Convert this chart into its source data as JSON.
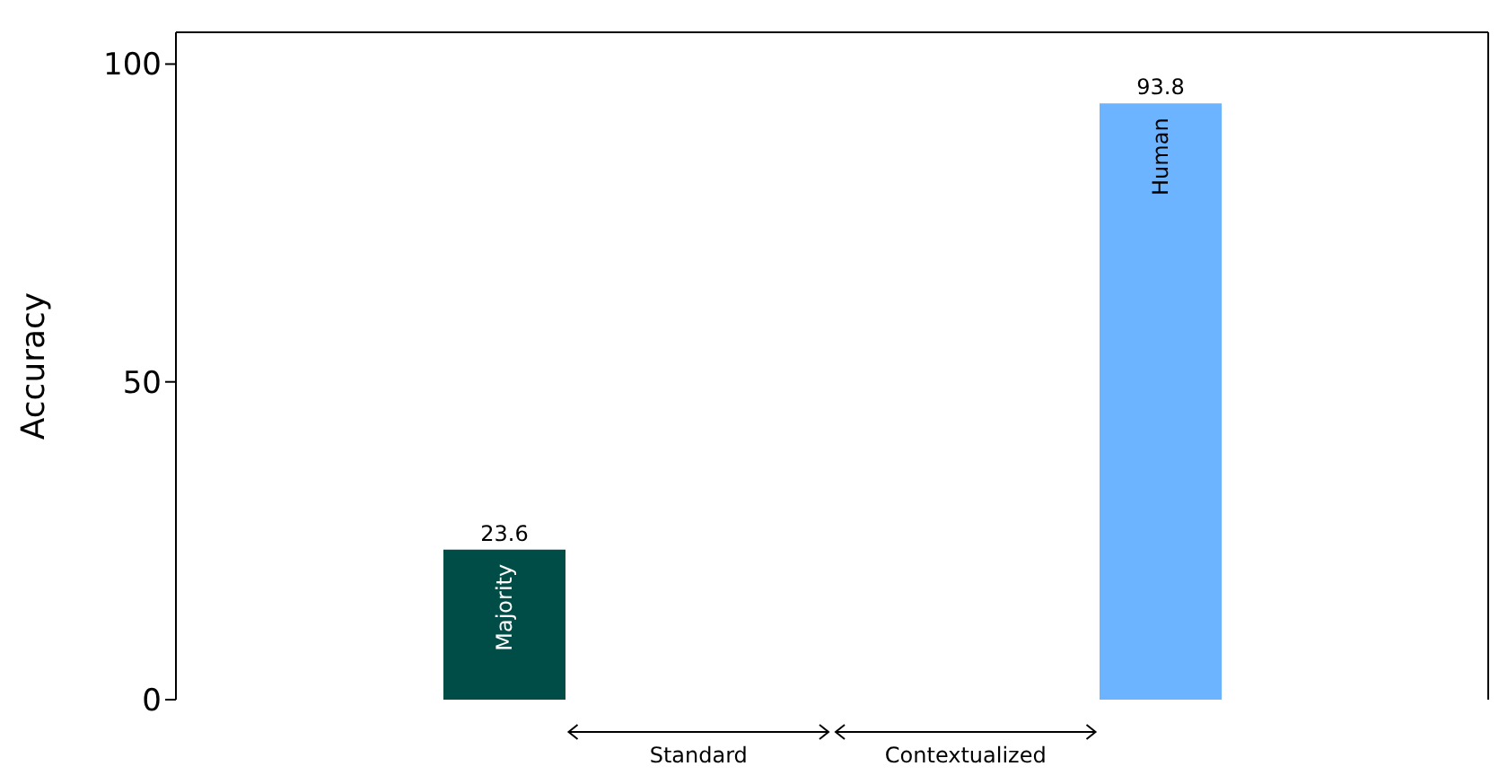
{
  "chart_data": {
    "type": "bar",
    "ylabel": "Accuracy",
    "categories": [
      "Majority",
      "Human"
    ],
    "values": [
      23.6,
      93.8
    ],
    "colors": [
      "#004d47",
      "#6cb4ff"
    ],
    "ylim": [
      0,
      105
    ],
    "yticks": [
      0,
      50,
      100
    ],
    "data_labels": true,
    "annotations": [
      "Standard",
      "Contextualized"
    ]
  }
}
